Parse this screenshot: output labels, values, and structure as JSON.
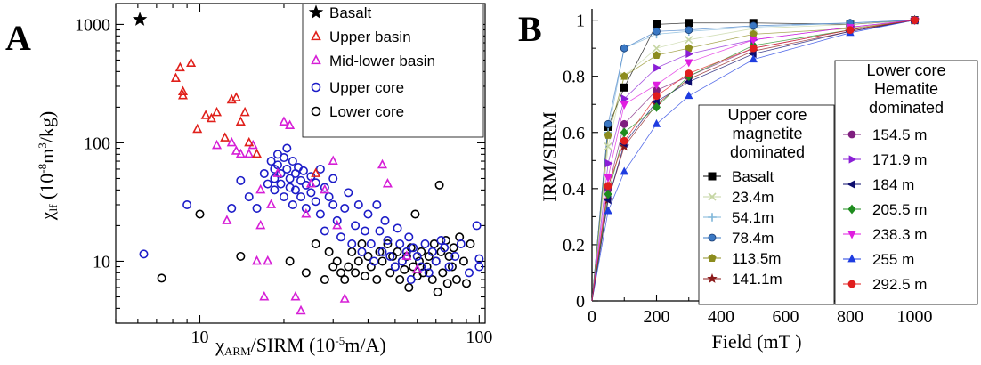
{
  "chart_data": [
    {
      "type": "scatter",
      "panel_label": "A",
      "xscale": "log",
      "yscale": "log",
      "xlim": [
        5,
        105
      ],
      "ylim": [
        3,
        1500
      ],
      "xticks": [
        10,
        100
      ],
      "yticks": [
        10,
        100,
        1000
      ],
      "xlabel": {
        "main": "χ",
        "sub": "ARM",
        "rest": "/SIRM  (10",
        "sup": "-5",
        "tail": "m/A)"
      },
      "ylabel": {
        "main": "χ",
        "sub": "lf",
        "rest": "  (10",
        "sup1": "-8",
        "mid": "m",
        "sup2": "3",
        "tail": "/kg)"
      },
      "legend": {
        "placement": "top-right"
      },
      "series": [
        {
          "name": "Basalt",
          "marker": "star",
          "color": "#000000",
          "points": [
            [
              6.1,
              1100
            ]
          ]
        },
        {
          "name": "Upper basin",
          "marker": "triangle",
          "color": "#e0201b",
          "points": [
            [
              8.2,
              350
            ],
            [
              8.5,
              430
            ],
            [
              8.7,
              270
            ],
            [
              8.7,
              250
            ],
            [
              9.3,
              470
            ],
            [
              9.8,
              130
            ],
            [
              10.5,
              170
            ],
            [
              11,
              160
            ],
            [
              11.5,
              180
            ],
            [
              12.3,
              110
            ],
            [
              13,
              230
            ],
            [
              13.5,
              240
            ],
            [
              14,
              150
            ],
            [
              14.5,
              180
            ],
            [
              15,
              100
            ],
            [
              16,
              80
            ],
            [
              26,
              55
            ],
            [
              28,
              150
            ]
          ]
        },
        {
          "name": "Mid-lower basin",
          "marker": "triangle",
          "color": "#d61ed6",
          "points": [
            [
              11.5,
              95
            ],
            [
              12.5,
              22
            ],
            [
              13,
              100
            ],
            [
              13.5,
              85
            ],
            [
              14,
              80
            ],
            [
              15,
              80
            ],
            [
              15.5,
              95
            ],
            [
              16,
              10
            ],
            [
              16.5,
              40
            ],
            [
              16.5,
              20
            ],
            [
              17,
              5
            ],
            [
              17.5,
              10
            ],
            [
              18,
              30
            ],
            [
              19,
              55
            ],
            [
              20,
              150
            ],
            [
              21,
              140
            ],
            [
              22,
              5
            ],
            [
              23,
              3.8
            ],
            [
              24,
              25
            ],
            [
              25,
              45
            ],
            [
              28,
              40
            ],
            [
              30,
              70
            ],
            [
              31,
              20
            ],
            [
              33,
              4.8
            ],
            [
              45,
              65
            ],
            [
              47,
              45
            ],
            [
              55,
              11
            ],
            [
              60,
              8.5
            ]
          ]
        },
        {
          "name": "Upper core",
          "marker": "circle",
          "color": "#1c1cc8",
          "points": [
            [
              6.3,
              11.5
            ],
            [
              9,
              30
            ],
            [
              13,
              28
            ],
            [
              14,
              48
            ],
            [
              15,
              35
            ],
            [
              16,
              28
            ],
            [
              17,
              55
            ],
            [
              17.5,
              45
            ],
            [
              18,
              70
            ],
            [
              18.5,
              60
            ],
            [
              18.5,
              50
            ],
            [
              18.5,
              40
            ],
            [
              19,
              80
            ],
            [
              19,
              65
            ],
            [
              19.5,
              55
            ],
            [
              19.5,
              45
            ],
            [
              20,
              35
            ],
            [
              20,
              75
            ],
            [
              20.5,
              90
            ],
            [
              20.5,
              60
            ],
            [
              21,
              50
            ],
            [
              21,
              42
            ],
            [
              21.5,
              70
            ],
            [
              21.5,
              30
            ],
            [
              22,
              55
            ],
            [
              22,
              40
            ],
            [
              22.5,
              62
            ],
            [
              23,
              48
            ],
            [
              23,
              35
            ],
            [
              23.5,
              58
            ],
            [
              24,
              44
            ],
            [
              24,
              28
            ],
            [
              25,
              52
            ],
            [
              25,
              38
            ],
            [
              26,
              46
            ],
            [
              26,
              32
            ],
            [
              27,
              60
            ],
            [
              27,
              25
            ],
            [
              28,
              42
            ],
            [
              28,
              18
            ],
            [
              29,
              35
            ],
            [
              30,
              30
            ],
            [
              30,
              50
            ],
            [
              31,
              22
            ],
            [
              32,
              16
            ],
            [
              33,
              28
            ],
            [
              34,
              38
            ],
            [
              35,
              14
            ],
            [
              36,
              20
            ],
            [
              37,
              30
            ],
            [
              38,
              12
            ],
            [
              39,
              18
            ],
            [
              40,
              25
            ],
            [
              41,
              14
            ],
            [
              42,
              10
            ],
            [
              43,
              30
            ],
            [
              44,
              18
            ],
            [
              45,
              12
            ],
            [
              46,
              22
            ],
            [
              47,
              15
            ],
            [
              48,
              11
            ],
            [
              50,
              9
            ],
            [
              51,
              19
            ],
            [
              52,
              14
            ],
            [
              53,
              10
            ],
            [
              55,
              12
            ],
            [
              56,
              16
            ],
            [
              57,
              7
            ],
            [
              58,
              13
            ],
            [
              60,
              11
            ],
            [
              62,
              9
            ],
            [
              64,
              14
            ],
            [
              66,
              8
            ],
            [
              68,
              12
            ],
            [
              70,
              10
            ],
            [
              73,
              15
            ],
            [
              75,
              13
            ],
            [
              78,
              9
            ],
            [
              82,
              11
            ],
            [
              86,
              14
            ],
            [
              92,
              8
            ],
            [
              98,
              20
            ],
            [
              100,
              9
            ],
            [
              100,
              10.5
            ]
          ]
        },
        {
          "name": "Lower core",
          "marker": "circle",
          "color": "#000000",
          "points": [
            [
              7.3,
              7.2
            ],
            [
              10,
              25
            ],
            [
              14,
              11
            ],
            [
              21,
              10
            ],
            [
              24,
              8
            ],
            [
              26,
              14
            ],
            [
              28,
              7
            ],
            [
              29,
              12
            ],
            [
              30,
              9
            ],
            [
              31,
              10
            ],
            [
              32,
              8
            ],
            [
              33,
              7
            ],
            [
              34,
              9
            ],
            [
              35,
              12
            ],
            [
              36,
              8
            ],
            [
              37,
              10
            ],
            [
              38,
              14
            ],
            [
              39,
              7.5
            ],
            [
              40,
              11
            ],
            [
              41,
              9
            ],
            [
              43,
              7
            ],
            [
              44,
              12
            ],
            [
              45,
              10
            ],
            [
              47,
              14
            ],
            [
              48,
              8
            ],
            [
              49,
              11
            ],
            [
              50,
              9
            ],
            [
              51,
              12
            ],
            [
              52,
              7
            ],
            [
              53,
              10
            ],
            [
              54,
              8.5
            ],
            [
              55,
              11
            ],
            [
              56,
              6
            ],
            [
              57,
              13
            ],
            [
              58,
              9
            ],
            [
              59,
              25
            ],
            [
              60,
              7.5
            ],
            [
              61,
              10
            ],
            [
              62,
              12
            ],
            [
              63,
              8
            ],
            [
              65,
              9
            ],
            [
              66,
              11
            ],
            [
              68,
              7
            ],
            [
              69,
              14
            ],
            [
              70,
              10
            ],
            [
              71,
              5.5
            ],
            [
              72,
              44
            ],
            [
              73,
              12
            ],
            [
              74,
              8
            ],
            [
              76,
              15
            ],
            [
              77,
              6.5
            ],
            [
              78,
              11
            ],
            [
              80,
              9
            ],
            [
              81,
              13
            ],
            [
              83,
              7
            ],
            [
              85,
              16
            ],
            [
              88,
              10
            ],
            [
              90,
              6.5
            ],
            [
              93,
              14
            ]
          ]
        }
      ]
    },
    {
      "type": "line",
      "panel_label": "B",
      "xlabel": "Field (mT )",
      "ylabel": "IRM/SIRM",
      "xlim": [
        0,
        1040
      ],
      "ylim": [
        0,
        1.04
      ],
      "xticks": [
        0,
        200,
        400,
        600,
        800,
        1000
      ],
      "yticks": [
        0,
        0.2,
        0.4,
        0.6,
        0.8,
        1.0
      ],
      "x": [
        0,
        50,
        100,
        200,
        300,
        500,
        800,
        1000
      ],
      "legend_groups": [
        {
          "title_lines": [
            "Upper core",
            "magnetite",
            "dominated"
          ],
          "placement": "center"
        },
        {
          "title_lines": [
            "Lower core",
            "Hematite",
            "dominated"
          ],
          "placement": "right"
        }
      ],
      "series": [
        {
          "name": "Basalt",
          "group": 0,
          "marker": "square",
          "color": "#000000",
          "values": [
            0,
            0.62,
            0.76,
            0.985,
            0.99,
            0.99,
            0.985,
            1.0
          ]
        },
        {
          "name": "23.4m",
          "group": 0,
          "marker": "x",
          "color": "#c6d6a4",
          "values": [
            0,
            0.55,
            0.8,
            0.9,
            0.93,
            0.97,
            0.985,
            1.0
          ]
        },
        {
          "name": "54.1m",
          "group": 0,
          "marker": "plus",
          "color": "#7fb6d9",
          "values": [
            0,
            0.6,
            0.9,
            0.95,
            0.96,
            0.975,
            0.99,
            1.0
          ]
        },
        {
          "name": "78.4m",
          "group": 0,
          "marker": "dot",
          "color": "#3a78c4",
          "values": [
            0,
            0.63,
            0.9,
            0.96,
            0.965,
            0.98,
            0.99,
            1.0
          ]
        },
        {
          "name": "113.5m",
          "group": 0,
          "marker": "pentagon",
          "color": "#8c8c1e",
          "values": [
            0,
            0.59,
            0.8,
            0.875,
            0.9,
            0.95,
            0.97,
            1.0
          ]
        },
        {
          "name": "141.1m",
          "group": 0,
          "marker": "star",
          "color": "#8b1a1a",
          "values": [
            0,
            0.36,
            0.55,
            0.7,
            0.79,
            0.89,
            0.96,
            1.0
          ]
        },
        {
          "name": "154.5 m",
          "group": 1,
          "marker": "circle",
          "color": "#7f1f7f",
          "values": [
            0,
            0.4,
            0.63,
            0.75,
            0.8,
            0.9,
            0.965,
            1.0
          ]
        },
        {
          "name": "171.9 m",
          "group": 1,
          "marker": "triangle-right",
          "color": "#8a1ed6",
          "values": [
            0,
            0.49,
            0.72,
            0.83,
            0.88,
            0.93,
            0.975,
            1.0
          ]
        },
        {
          "name": "184 m",
          "group": 1,
          "marker": "triangle-left",
          "color": "#0d0d6e",
          "values": [
            0,
            0.36,
            0.56,
            0.71,
            0.78,
            0.88,
            0.96,
            1.0
          ]
        },
        {
          "name": "205.5 m",
          "group": 1,
          "marker": "diamond",
          "color": "#1e8c1e",
          "values": [
            0,
            0.38,
            0.6,
            0.69,
            0.8,
            0.91,
            0.965,
            1.0
          ]
        },
        {
          "name": "238.3 m",
          "group": 1,
          "marker": "triangle-down",
          "color": "#e01ee0",
          "values": [
            0,
            0.44,
            0.7,
            0.77,
            0.85,
            0.93,
            0.975,
            1.0
          ]
        },
        {
          "name": "255 m",
          "group": 1,
          "marker": "triangle-up",
          "color": "#1e3ce0",
          "values": [
            0,
            0.32,
            0.46,
            0.63,
            0.73,
            0.86,
            0.955,
            1.0
          ]
        },
        {
          "name": "292.5 m",
          "group": 1,
          "marker": "circle",
          "color": "#e01e1e",
          "values": [
            0,
            0.41,
            0.57,
            0.73,
            0.81,
            0.9,
            0.965,
            1.0
          ]
        }
      ]
    }
  ]
}
